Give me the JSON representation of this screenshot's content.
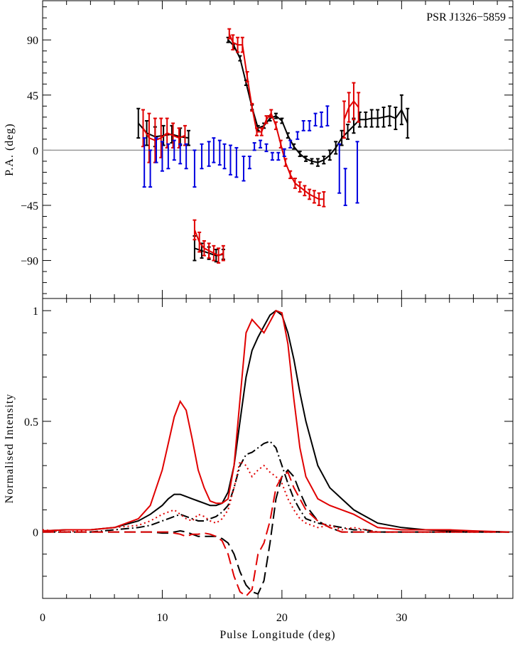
{
  "chart_data": [
    {
      "type": "line",
      "title": "PSR J1326−5859",
      "ylabel": "P.A. (deg)",
      "xlim": [
        0,
        39.3
      ],
      "xticks": [
        0,
        10,
        20,
        30
      ],
      "xminor": [
        2,
        4,
        6,
        8,
        12,
        14,
        16,
        18,
        22,
        24,
        26,
        28,
        32,
        34,
        36,
        38
      ],
      "show_xtick_labels": false,
      "ylim": [
        -121,
        122
      ],
      "yticks": [
        {
          "value": 90,
          "label": "90"
        },
        {
          "value": 45,
          "label": "45"
        },
        0,
        {
          "value": -45,
          "label": "−45"
        },
        {
          "value": -90,
          "label": "−90"
        }
      ],
      "yminor": [
        -117,
        -108,
        -99,
        -81,
        -72,
        -63,
        -54,
        -36,
        -27,
        -18,
        -9,
        9,
        18,
        27,
        36,
        54,
        63,
        72,
        81,
        99,
        108,
        117
      ],
      "zero_line": true,
      "series": [
        {
          "color": "#000000",
          "style": "solid",
          "x": [
            8,
            8.7,
            9.4,
            10.1,
            10.8,
            11.5,
            12.2,
            12.5,
            12.7,
            13.3,
            13.9,
            14.5,
            15.1,
            15.3,
            15.5,
            16,
            16.5,
            17,
            17.5,
            18,
            18.5,
            19,
            19.5,
            20,
            20.5,
            21,
            21.5,
            22,
            22.5,
            23,
            23.5,
            24,
            24.5,
            25,
            25.5,
            26,
            26.5,
            27,
            27.5,
            28,
            28.5,
            29,
            29.5,
            30,
            30.5
          ],
          "values": [
            22,
            14,
            11,
            12,
            13,
            11,
            10,
            null,
            -80,
            -82,
            -84,
            -86,
            -85,
            null,
            90,
            85,
            75,
            55,
            35,
            18,
            20,
            26,
            28,
            24,
            12,
            3,
            -3,
            -7,
            -9,
            -10,
            -8,
            -4,
            2,
            10,
            15,
            20,
            25,
            25,
            26,
            26,
            27,
            28,
            26,
            33,
            22
          ],
          "errors": [
            12,
            10,
            8,
            8,
            7,
            7,
            6,
            null,
            10,
            6,
            5,
            5,
            4,
            null,
            2,
            2,
            2,
            2,
            2,
            2,
            2,
            2,
            2,
            2,
            2,
            2,
            2,
            2,
            2,
            3,
            3,
            4,
            5,
            6,
            6,
            6,
            6,
            6,
            7,
            7,
            8,
            8,
            9,
            12,
            12
          ]
        },
        {
          "color": "#e00000",
          "style": "solid",
          "x": [
            8.4,
            8.9,
            9.4,
            9.9,
            10.4,
            10.9,
            11.4,
            11.9,
            12.4,
            12.7,
            13.1,
            13.5,
            13.9,
            14.3,
            14.7,
            15.1,
            15.4,
            15.6,
            15.9,
            16.3,
            16.7,
            17.1,
            17.5,
            17.9,
            18.3,
            18.7,
            19.1,
            19.5,
            19.9,
            20.3,
            20.7,
            21.1,
            21.5,
            21.9,
            22.3,
            22.7,
            23.1,
            23.5,
            24.5,
            25.2,
            25.6,
            26,
            26.4
          ],
          "values": [
            18,
            10,
            8,
            10,
            14,
            12,
            10,
            12,
            null,
            -65,
            -75,
            -80,
            -82,
            -84,
            -86,
            -84,
            null,
            95,
            88,
            86,
            86,
            60,
            35,
            15,
            15,
            25,
            30,
            20,
            5,
            -10,
            -20,
            -27,
            -30,
            -33,
            -36,
            -38,
            -40,
            -40,
            null,
            25,
            35,
            40,
            35
          ],
          "errors": [
            15,
            20,
            18,
            16,
            12,
            10,
            8,
            8,
            null,
            8,
            8,
            6,
            6,
            6,
            6,
            6,
            null,
            4,
            6,
            6,
            6,
            4,
            3,
            3,
            3,
            3,
            3,
            3,
            3,
            3,
            3,
            4,
            4,
            4,
            4,
            5,
            5,
            6,
            null,
            15,
            12,
            15,
            12
          ]
        },
        {
          "color": "#0000e0",
          "style": "none",
          "x": [
            8.5,
            9,
            9.5,
            10,
            10.5,
            11,
            11.5,
            12,
            12.7,
            13.3,
            13.9,
            14.3,
            14.8,
            15.2,
            15.7,
            16.2,
            16.8,
            17.3,
            17.7,
            18.2,
            18.7,
            19.2,
            19.7,
            20.2,
            20.7,
            21.3,
            21.8,
            22.3,
            22.8,
            23.3,
            23.8,
            24.8,
            25.3,
            26.3
          ],
          "values": [
            -10,
            -15,
            0,
            -5,
            -5,
            0,
            -3,
            -5,
            -15,
            -5,
            -3,
            0,
            -2,
            -5,
            -8,
            -10,
            -15,
            -10,
            3,
            5,
            2,
            -5,
            -5,
            -2,
            5,
            12,
            20,
            20,
            25,
            25,
            28,
            -15,
            -30,
            -18
          ],
          "errors": [
            20,
            15,
            10,
            12,
            10,
            8,
            8,
            10,
            15,
            10,
            10,
            10,
            10,
            10,
            12,
            12,
            10,
            5,
            3,
            3,
            3,
            3,
            3,
            3,
            3,
            3,
            4,
            4,
            5,
            6,
            8,
            20,
            15,
            25
          ]
        }
      ]
    },
    {
      "type": "line",
      "ylabel": "Normalised Intensity",
      "xlabel": "Pulse Longitude (deg)",
      "xlim": [
        0,
        39.3
      ],
      "xticks": [
        0,
        10,
        20,
        30
      ],
      "xminor": [
        2,
        4,
        6,
        8,
        12,
        14,
        16,
        18,
        22,
        24,
        26,
        28,
        32,
        34,
        36,
        38
      ],
      "show_xtick_labels": true,
      "ylim": [
        -0.3,
        1.055
      ],
      "yticks": [
        0,
        0.5,
        1
      ],
      "yminor": [
        -0.2,
        -0.1,
        0.1,
        0.2,
        0.3,
        0.4,
        0.6,
        0.7,
        0.8,
        0.9
      ],
      "x": [
        0,
        2,
        4,
        6,
        8,
        9,
        10,
        10.5,
        11,
        11.5,
        12,
        12.5,
        13,
        13.5,
        14,
        14.5,
        15,
        15.5,
        16,
        16.5,
        17,
        17.5,
        18,
        18.5,
        19,
        19.5,
        20,
        20.5,
        21,
        21.5,
        22,
        23,
        24,
        25,
        26,
        27,
        28,
        30,
        32,
        34,
        36,
        39
      ],
      "series": [
        {
          "color": "#000000",
          "style": "solid",
          "values": [
            0.005,
            0.01,
            0.01,
            0.02,
            0.05,
            0.08,
            0.12,
            0.15,
            0.17,
            0.17,
            0.16,
            0.15,
            0.14,
            0.13,
            0.12,
            0.12,
            0.13,
            0.18,
            0.3,
            0.5,
            0.7,
            0.82,
            0.88,
            0.93,
            0.98,
            1.0,
            0.98,
            0.9,
            0.78,
            0.63,
            0.5,
            0.3,
            0.2,
            0.15,
            0.1,
            0.07,
            0.04,
            0.02,
            0.01,
            0.005,
            0.002,
            0.0
          ]
        },
        {
          "color": "#e00000",
          "style": "solid",
          "values": [
            0.005,
            0.01,
            0.01,
            0.02,
            0.06,
            0.12,
            0.28,
            0.4,
            0.52,
            0.59,
            0.55,
            0.42,
            0.28,
            0.2,
            0.14,
            0.13,
            0.13,
            0.15,
            0.3,
            0.6,
            0.9,
            0.96,
            0.93,
            0.9,
            0.95,
            1.0,
            0.99,
            0.85,
            0.6,
            0.38,
            0.25,
            0.15,
            0.12,
            0.1,
            0.08,
            0.05,
            0.02,
            0.01,
            0.01,
            0.01,
            0.005,
            0.0
          ]
        },
        {
          "color": "#000000",
          "style": "dashdot",
          "values": [
            0,
            0,
            0,
            0.01,
            0.02,
            0.03,
            0.05,
            0.06,
            0.07,
            0.08,
            0.07,
            0.06,
            0.05,
            0.05,
            0.06,
            0.07,
            0.09,
            0.12,
            0.2,
            0.3,
            0.35,
            0.36,
            0.38,
            0.4,
            0.41,
            0.38,
            0.3,
            0.22,
            0.15,
            0.1,
            0.06,
            0.04,
            0.03,
            0.02,
            0.01,
            0.01,
            0,
            0,
            0,
            0,
            0,
            0
          ]
        },
        {
          "color": "#e00000",
          "style": "dotted",
          "values": [
            0.01,
            0,
            0.01,
            0.02,
            0.03,
            0.05,
            0.08,
            0.09,
            0.1,
            0.08,
            0.06,
            0.05,
            0.08,
            0.07,
            0.05,
            0.04,
            0.06,
            0.1,
            0.2,
            0.32,
            0.3,
            0.25,
            0.28,
            0.3,
            0.27,
            0.25,
            0.22,
            0.15,
            0.1,
            0.06,
            0.04,
            0.02,
            0.03,
            0.01,
            0.02,
            0.01,
            0,
            0,
            0,
            0,
            0,
            0
          ]
        },
        {
          "color": "#000000",
          "style": "dashed",
          "values": [
            0,
            0,
            0,
            0,
            0,
            0,
            -0.005,
            -0.005,
            0,
            0.005,
            0,
            -0.01,
            -0.02,
            -0.02,
            -0.02,
            -0.02,
            -0.03,
            -0.05,
            -0.1,
            -0.18,
            -0.24,
            -0.27,
            -0.28,
            -0.22,
            -0.05,
            0.15,
            0.25,
            0.28,
            0.25,
            0.18,
            0.12,
            0.05,
            0.02,
            0,
            0,
            0,
            0,
            0,
            0,
            0,
            0,
            0
          ]
        },
        {
          "color": "#e00000",
          "style": "dashed",
          "values": [
            0,
            0,
            0,
            0,
            0,
            0,
            0,
            0,
            -0.005,
            -0.01,
            -0.02,
            -0.01,
            -0.01,
            -0.005,
            -0.01,
            -0.02,
            -0.04,
            -0.1,
            -0.2,
            -0.27,
            -0.29,
            -0.26,
            -0.1,
            -0.05,
            0.05,
            0.2,
            0.25,
            0.27,
            0.2,
            0.15,
            0.1,
            0.05,
            0.02,
            0,
            0,
            0,
            0,
            0,
            0,
            0,
            0,
            0
          ]
        }
      ]
    }
  ]
}
